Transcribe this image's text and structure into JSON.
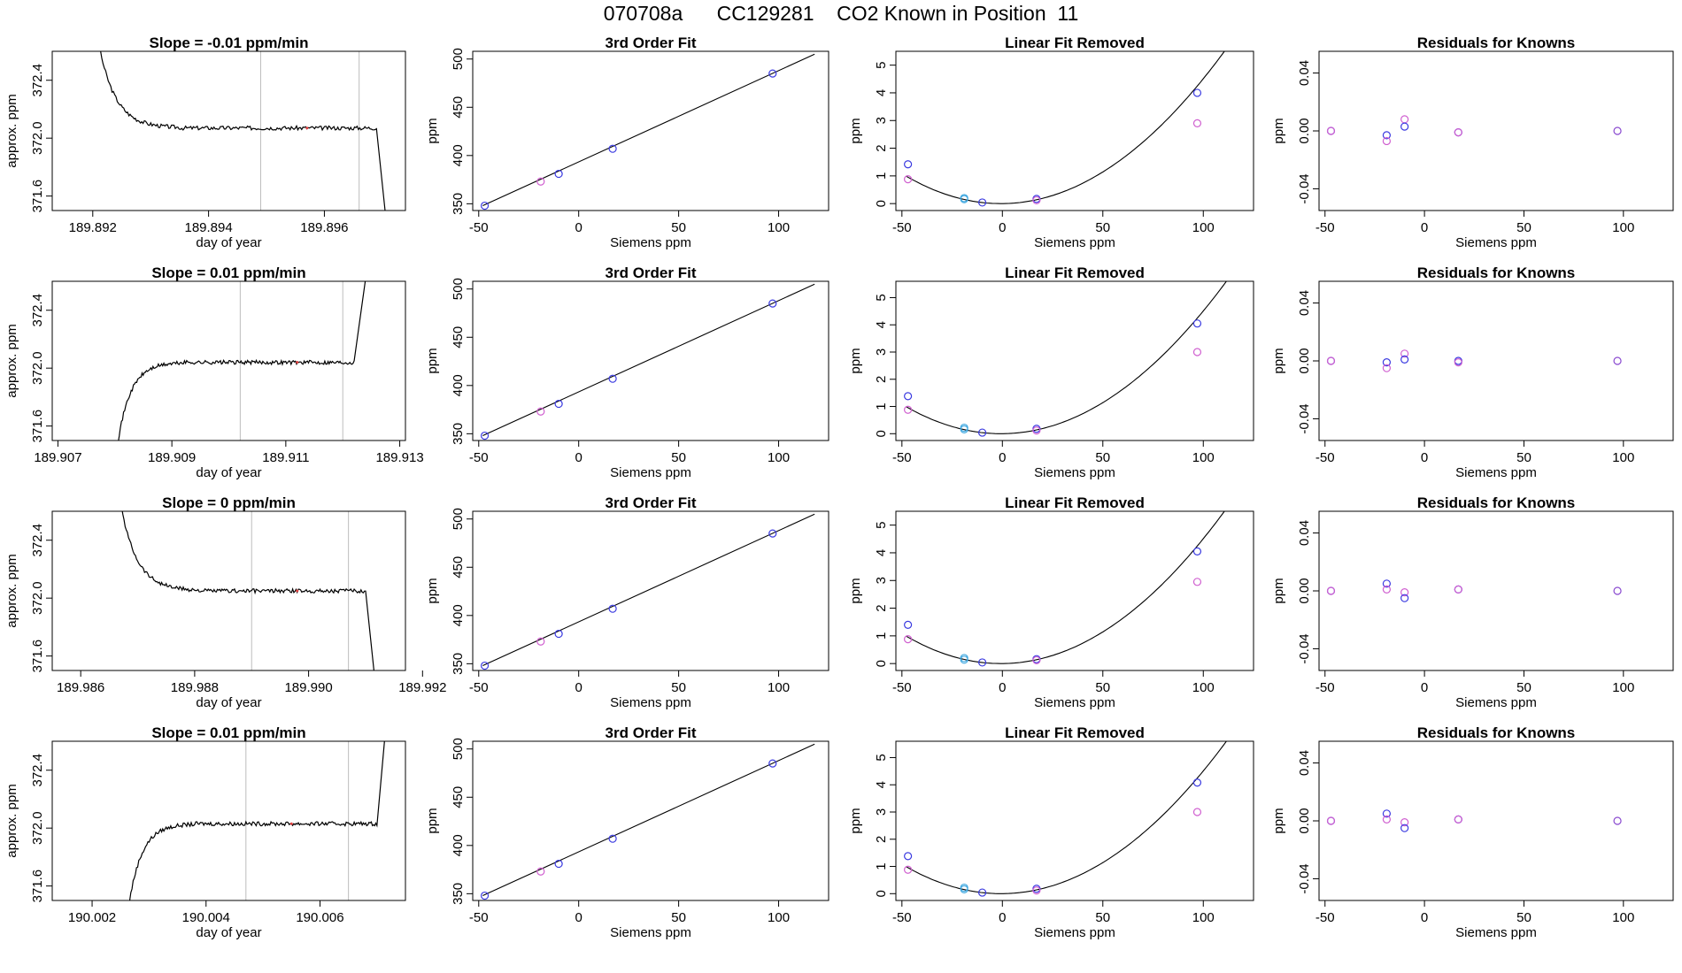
{
  "page": {
    "title": "070708a      CC129281    CO2 Known in Position  11"
  },
  "colors": {
    "line": "#000000",
    "blue": "#3a3ae0",
    "magenta": "#d060d0",
    "cyan": "#40a8e0",
    "purple": "#8a4ad0",
    "gridline": "#bdbdbd",
    "red_mark": "#e04040"
  },
  "chart_data": [
    {
      "id": "r1-time",
      "type": "line",
      "panel": "time",
      "row": 0,
      "title": "Slope =  -0.01  ppm/min",
      "xlabel": "day of year",
      "ylabel": "approx. ppm",
      "xlim": [
        189.8913,
        189.8974
      ],
      "ylim": [
        371.5,
        372.6
      ],
      "xticks": [
        189.892,
        189.894,
        189.896
      ],
      "xtick_labels": [
        "189.892",
        "189.894",
        "189.896"
      ],
      "yticks": [
        371.6,
        372.0,
        372.4
      ],
      "ytick_labels": [
        "371.6",
        "372.0",
        "372.4"
      ],
      "shape": "down",
      "x": [
        189.892,
        189.8935,
        189.896,
        189.8969,
        189.8971
      ],
      "plateau": 372.07,
      "vlines": [
        189.8949,
        189.8966
      ],
      "red_mark_x": 189.8957
    },
    {
      "id": "r1-fit",
      "type": "scatter",
      "panel": "fit",
      "row": 0,
      "title": "3rd Order Fit",
      "xlabel": "Siemens ppm",
      "ylabel": "ppm",
      "xlim": [
        -53,
        125
      ],
      "ylim": [
        343,
        508
      ],
      "xticks": [
        -50,
        0,
        50,
        100
      ],
      "xtick_labels": [
        "-50",
        "0",
        "50",
        "100"
      ],
      "yticks": [
        350,
        400,
        450,
        500
      ],
      "ytick_labels": [
        "350",
        "400",
        "450",
        "500"
      ],
      "line": [
        [
          -48,
          348
        ],
        [
          118,
          505
        ]
      ],
      "points": [
        [
          -47,
          348
        ],
        [
          -19,
          373
        ],
        [
          -10,
          381
        ],
        [
          17,
          407
        ],
        [
          97,
          485
        ]
      ],
      "point_colors": [
        "blue",
        "magenta",
        "blue",
        "blue",
        "blue"
      ]
    },
    {
      "id": "r1-lin",
      "type": "scatter",
      "panel": "lin",
      "row": 0,
      "title": "Linear Fit Removed",
      "xlabel": "Siemens ppm",
      "ylabel": "ppm",
      "xlim": [
        -53,
        125
      ],
      "ylim": [
        -0.25,
        5.5
      ],
      "xticks": [
        -50,
        0,
        50,
        100
      ],
      "xtick_labels": [
        "-50",
        "0",
        "50",
        "100"
      ],
      "yticks": [
        0,
        1,
        2,
        3,
        4,
        5
      ],
      "ytick_labels": [
        "0",
        "1",
        "2",
        "3",
        "4",
        "5"
      ],
      "curve_a": 0.000445,
      "curve_b": 0.0006,
      "curve_c": 0.0,
      "curve_x": [
        -48,
        118
      ],
      "points": [
        [
          -47,
          1.42
        ],
        [
          -47,
          0.88
        ],
        [
          -19,
          0.2
        ],
        [
          -19,
          0.16
        ],
        [
          -10,
          0.04
        ],
        [
          17,
          0.17
        ],
        [
          17,
          0.12
        ],
        [
          97,
          4.0
        ],
        [
          97,
          2.9
        ]
      ],
      "point_colors": [
        "blue",
        "magenta",
        "cyan",
        "cyan",
        "blue",
        "blue",
        "magenta",
        "blue",
        "magenta"
      ]
    },
    {
      "id": "r1-res",
      "type": "scatter",
      "panel": "res",
      "row": 0,
      "title": "Residuals for Knowns",
      "xlabel": "Siemens ppm",
      "ylabel": "ppm",
      "xlim": [
        -53,
        125
      ],
      "ylim": [
        -0.055,
        0.055
      ],
      "xticks": [
        -50,
        0,
        50,
        100
      ],
      "xtick_labels": [
        "-50",
        "0",
        "50",
        "100"
      ],
      "yticks": [
        -0.04,
        0.0,
        0.04
      ],
      "ytick_labels": [
        "-0.04",
        "0.00",
        "0.04"
      ],
      "points": [
        [
          -47,
          0.0
        ],
        [
          -47,
          0.0
        ],
        [
          -19,
          -0.003
        ],
        [
          -19,
          -0.007
        ],
        [
          -10,
          0.008
        ],
        [
          -10,
          0.003
        ],
        [
          17,
          -0.001
        ],
        [
          17,
          -0.001
        ],
        [
          97,
          0.0
        ]
      ],
      "point_colors": [
        "blue",
        "magenta",
        "blue",
        "magenta",
        "magenta",
        "blue",
        "blue",
        "magenta",
        "purple"
      ]
    },
    {
      "id": "r2-time",
      "type": "line",
      "panel": "time",
      "row": 1,
      "title": "Slope =  0.01  ppm/min",
      "xlabel": "day of year",
      "ylabel": "approx. ppm",
      "xlim": [
        189.9069,
        189.9131
      ],
      "ylim": [
        371.5,
        372.6
      ],
      "xticks": [
        189.907,
        189.909,
        189.911,
        189.913
      ],
      "xtick_labels": [
        "189.907",
        "189.909",
        "189.911",
        "189.913"
      ],
      "yticks": [
        371.6,
        372.0,
        372.4
      ],
      "ytick_labels": [
        "371.6",
        "372.0",
        "372.4"
      ],
      "shape": "up",
      "x": [
        189.908,
        189.9092,
        189.911,
        189.9122,
        189.9125
      ],
      "plateau": 372.04,
      "vlines": [
        189.9102,
        189.912
      ],
      "red_mark_x": 189.9112
    },
    {
      "id": "r2-fit",
      "type": "scatter",
      "panel": "fit",
      "row": 1,
      "title": "3rd Order Fit",
      "xlabel": "Siemens ppm",
      "ylabel": "ppm",
      "xlim": [
        -53,
        125
      ],
      "ylim": [
        343,
        508
      ],
      "xticks": [
        -50,
        0,
        50,
        100
      ],
      "xtick_labels": [
        "-50",
        "0",
        "50",
        "100"
      ],
      "yticks": [
        350,
        400,
        450,
        500
      ],
      "ytick_labels": [
        "350",
        "400",
        "450",
        "500"
      ],
      "line": [
        [
          -48,
          348
        ],
        [
          118,
          505
        ]
      ],
      "points": [
        [
          -47,
          348
        ],
        [
          -19,
          373
        ],
        [
          -10,
          381
        ],
        [
          17,
          407
        ],
        [
          97,
          485
        ]
      ],
      "point_colors": [
        "blue",
        "magenta",
        "blue",
        "blue",
        "blue"
      ]
    },
    {
      "id": "r2-lin",
      "type": "scatter",
      "panel": "lin",
      "row": 1,
      "title": "Linear Fit Removed",
      "xlabel": "Siemens ppm",
      "ylabel": "ppm",
      "xlim": [
        -53,
        125
      ],
      "ylim": [
        -0.25,
        5.6
      ],
      "xticks": [
        -50,
        0,
        50,
        100
      ],
      "xtick_labels": [
        "-50",
        "0",
        "50",
        "100"
      ],
      "yticks": [
        0,
        1,
        2,
        3,
        4,
        5
      ],
      "ytick_labels": [
        "0",
        "1",
        "2",
        "3",
        "4",
        "5"
      ],
      "curve_a": 0.000445,
      "curve_b": 0.0006,
      "curve_c": 0.0,
      "curve_x": [
        -48,
        118
      ],
      "points": [
        [
          -47,
          1.38
        ],
        [
          -47,
          0.88
        ],
        [
          -19,
          0.22
        ],
        [
          -19,
          0.16
        ],
        [
          -10,
          0.04
        ],
        [
          17,
          0.18
        ],
        [
          17,
          0.12
        ],
        [
          97,
          4.05
        ],
        [
          97,
          3.0
        ]
      ],
      "point_colors": [
        "blue",
        "magenta",
        "cyan",
        "cyan",
        "blue",
        "blue",
        "magenta",
        "blue",
        "magenta"
      ]
    },
    {
      "id": "r2-res",
      "type": "scatter",
      "panel": "res",
      "row": 1,
      "title": "Residuals for Knowns",
      "xlabel": "Siemens ppm",
      "ylabel": "ppm",
      "xlim": [
        -53,
        125
      ],
      "ylim": [
        -0.055,
        0.055
      ],
      "xticks": [
        -50,
        0,
        50,
        100
      ],
      "xtick_labels": [
        "-50",
        "0",
        "50",
        "100"
      ],
      "yticks": [
        -0.04,
        0.0,
        0.04
      ],
      "ytick_labels": [
        "-0.04",
        "0.00",
        "0.04"
      ],
      "points": [
        [
          -47,
          0.0
        ],
        [
          -47,
          0.0
        ],
        [
          -19,
          -0.001
        ],
        [
          -19,
          -0.005
        ],
        [
          -10,
          0.005
        ],
        [
          -10,
          0.001
        ],
        [
          17,
          0.0
        ],
        [
          17,
          -0.001
        ],
        [
          97,
          0.0
        ]
      ],
      "point_colors": [
        "blue",
        "magenta",
        "blue",
        "magenta",
        "magenta",
        "blue",
        "blue",
        "magenta",
        "purple"
      ]
    },
    {
      "id": "r3-time",
      "type": "line",
      "panel": "time",
      "row": 2,
      "title": "Slope =  0  ppm/min",
      "xlabel": "day of year",
      "ylabel": "approx. ppm",
      "xlim": [
        189.9855,
        189.9917
      ],
      "ylim": [
        371.5,
        372.6
      ],
      "xticks": [
        189.986,
        189.988,
        189.99,
        189.992
      ],
      "xtick_labels": [
        "189.986",
        "189.988",
        "189.990",
        "189.992"
      ],
      "yticks": [
        371.6,
        372.0,
        372.4
      ],
      "ytick_labels": [
        "371.6",
        "372.0",
        "372.4"
      ],
      "shape": "down",
      "x": [
        189.9866,
        189.9881,
        189.9905,
        189.991,
        189.9912
      ],
      "plateau": 372.05,
      "vlines": [
        189.989,
        189.9907
      ],
      "red_mark_x": 189.9898
    },
    {
      "id": "r3-fit",
      "type": "scatter",
      "panel": "fit",
      "row": 2,
      "title": "3rd Order Fit",
      "xlabel": "Siemens ppm",
      "ylabel": "ppm",
      "xlim": [
        -53,
        125
      ],
      "ylim": [
        343,
        508
      ],
      "xticks": [
        -50,
        0,
        50,
        100
      ],
      "xtick_labels": [
        "-50",
        "0",
        "50",
        "100"
      ],
      "yticks": [
        350,
        400,
        450,
        500
      ],
      "ytick_labels": [
        "350",
        "400",
        "450",
        "500"
      ],
      "line": [
        [
          -48,
          348
        ],
        [
          118,
          505
        ]
      ],
      "points": [
        [
          -47,
          348
        ],
        [
          -19,
          373
        ],
        [
          -10,
          381
        ],
        [
          17,
          407
        ],
        [
          97,
          485
        ]
      ],
      "point_colors": [
        "blue",
        "magenta",
        "blue",
        "blue",
        "blue"
      ]
    },
    {
      "id": "r3-lin",
      "type": "scatter",
      "panel": "lin",
      "row": 2,
      "title": "Linear Fit Removed",
      "xlabel": "Siemens ppm",
      "ylabel": "ppm",
      "xlim": [
        -53,
        125
      ],
      "ylim": [
        -0.25,
        5.5
      ],
      "xticks": [
        -50,
        0,
        50,
        100
      ],
      "xtick_labels": [
        "-50",
        "0",
        "50",
        "100"
      ],
      "yticks": [
        0,
        1,
        2,
        3,
        4,
        5
      ],
      "ytick_labels": [
        "0",
        "1",
        "2",
        "3",
        "4",
        "5"
      ],
      "curve_a": 0.000445,
      "curve_b": 0.0006,
      "curve_c": 0.0,
      "curve_x": [
        -48,
        118
      ],
      "points": [
        [
          -47,
          1.4
        ],
        [
          -47,
          0.88
        ],
        [
          -19,
          0.2
        ],
        [
          -19,
          0.14
        ],
        [
          -10,
          0.04
        ],
        [
          17,
          0.16
        ],
        [
          17,
          0.12
        ],
        [
          97,
          4.05
        ],
        [
          97,
          2.95
        ]
      ],
      "point_colors": [
        "blue",
        "magenta",
        "cyan",
        "cyan",
        "blue",
        "blue",
        "magenta",
        "blue",
        "magenta"
      ]
    },
    {
      "id": "r3-res",
      "type": "scatter",
      "panel": "res",
      "row": 2,
      "title": "Residuals for Knowns",
      "xlabel": "Siemens ppm",
      "ylabel": "ppm",
      "xlim": [
        -53,
        125
      ],
      "ylim": [
        -0.055,
        0.055
      ],
      "xticks": [
        -50,
        0,
        50,
        100
      ],
      "xtick_labels": [
        "-50",
        "0",
        "50",
        "100"
      ],
      "yticks": [
        -0.04,
        0.0,
        0.04
      ],
      "ytick_labels": [
        "-0.04",
        "0.00",
        "0.04"
      ],
      "points": [
        [
          -47,
          0.0
        ],
        [
          -47,
          0.0
        ],
        [
          -19,
          0.005
        ],
        [
          -19,
          0.001
        ],
        [
          -10,
          -0.001
        ],
        [
          -10,
          -0.005
        ],
        [
          17,
          0.001
        ],
        [
          17,
          0.001
        ],
        [
          97,
          0.0
        ]
      ],
      "point_colors": [
        "blue",
        "magenta",
        "blue",
        "magenta",
        "magenta",
        "blue",
        "blue",
        "magenta",
        "purple"
      ]
    },
    {
      "id": "r4-time",
      "type": "line",
      "panel": "time",
      "row": 3,
      "title": "Slope =  0.01  ppm/min",
      "xlabel": "day of year",
      "ylabel": "approx. ppm",
      "xlim": [
        190.0013,
        190.0075
      ],
      "ylim": [
        371.5,
        372.6
      ],
      "xticks": [
        190.002,
        190.004,
        190.006
      ],
      "xtick_labels": [
        "190.002",
        "190.004",
        "190.006"
      ],
      "yticks": [
        371.6,
        372.0,
        372.4
      ],
      "ytick_labels": [
        "371.6",
        "372.0",
        "372.4"
      ],
      "shape": "up",
      "x": [
        190.0026,
        190.0038,
        190.0058,
        190.007,
        190.0072
      ],
      "plateau": 372.03,
      "vlines": [
        190.0047,
        190.0065
      ],
      "red_mark_x": 190.0055
    },
    {
      "id": "r4-fit",
      "type": "scatter",
      "panel": "fit",
      "row": 3,
      "title": "3rd Order Fit",
      "xlabel": "Siemens ppm",
      "ylabel": "ppm",
      "xlim": [
        -53,
        125
      ],
      "ylim": [
        343,
        508
      ],
      "xticks": [
        -50,
        0,
        50,
        100
      ],
      "xtick_labels": [
        "-50",
        "0",
        "50",
        "100"
      ],
      "yticks": [
        350,
        400,
        450,
        500
      ],
      "ytick_labels": [
        "350",
        "400",
        "450",
        "500"
      ],
      "line": [
        [
          -48,
          348
        ],
        [
          118,
          505
        ]
      ],
      "points": [
        [
          -47,
          348
        ],
        [
          -19,
          373
        ],
        [
          -10,
          381
        ],
        [
          17,
          407
        ],
        [
          97,
          485
        ]
      ],
      "point_colors": [
        "blue",
        "magenta",
        "blue",
        "blue",
        "blue"
      ]
    },
    {
      "id": "r4-lin",
      "type": "scatter",
      "panel": "lin",
      "row": 3,
      "title": "Linear Fit Removed",
      "xlabel": "Siemens ppm",
      "ylabel": "ppm",
      "xlim": [
        -53,
        125
      ],
      "ylim": [
        -0.25,
        5.6
      ],
      "xticks": [
        -50,
        0,
        50,
        100
      ],
      "xtick_labels": [
        "-50",
        "0",
        "50",
        "100"
      ],
      "yticks": [
        0,
        1,
        2,
        3,
        4,
        5
      ],
      "ytick_labels": [
        "0",
        "1",
        "2",
        "3",
        "4",
        "5"
      ],
      "curve_a": 0.000445,
      "curve_b": 0.0006,
      "curve_c": 0.0,
      "curve_x": [
        -48,
        118
      ],
      "points": [
        [
          -47,
          1.38
        ],
        [
          -47,
          0.88
        ],
        [
          -19,
          0.22
        ],
        [
          -19,
          0.16
        ],
        [
          -10,
          0.04
        ],
        [
          17,
          0.18
        ],
        [
          17,
          0.12
        ],
        [
          97,
          4.08
        ],
        [
          97,
          3.0
        ]
      ],
      "point_colors": [
        "blue",
        "magenta",
        "cyan",
        "cyan",
        "blue",
        "blue",
        "magenta",
        "blue",
        "magenta"
      ]
    },
    {
      "id": "r4-res",
      "type": "scatter",
      "panel": "res",
      "row": 3,
      "title": "Residuals for Knowns",
      "xlabel": "Siemens ppm",
      "ylabel": "ppm",
      "xlim": [
        -53,
        125
      ],
      "ylim": [
        -0.055,
        0.055
      ],
      "xticks": [
        -50,
        0,
        50,
        100
      ],
      "xtick_labels": [
        "-50",
        "0",
        "50",
        "100"
      ],
      "yticks": [
        -0.04,
        0.0,
        0.04
      ],
      "ytick_labels": [
        "-0.04",
        "0.00",
        "0.04"
      ],
      "points": [
        [
          -47,
          0.0
        ],
        [
          -47,
          0.0
        ],
        [
          -19,
          0.005
        ],
        [
          -19,
          0.001
        ],
        [
          -10,
          -0.001
        ],
        [
          -10,
          -0.005
        ],
        [
          17,
          0.001
        ],
        [
          17,
          0.001
        ],
        [
          97,
          0.0
        ]
      ],
      "point_colors": [
        "blue",
        "magenta",
        "blue",
        "magenta",
        "magenta",
        "blue",
        "blue",
        "magenta",
        "purple"
      ]
    }
  ]
}
